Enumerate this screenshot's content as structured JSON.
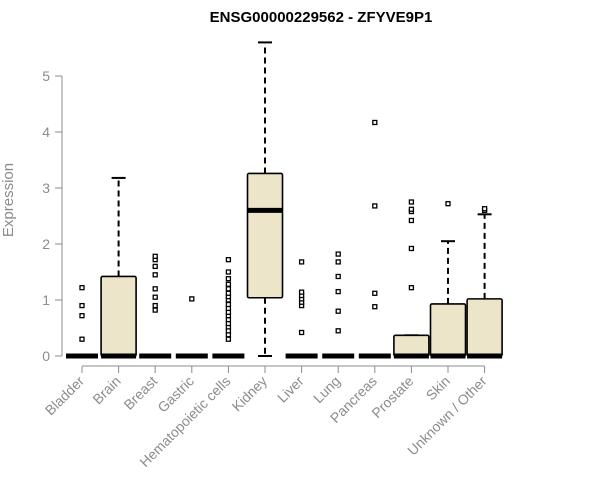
{
  "chart_data": {
    "type": "boxplot",
    "title": "ENSG00000229562 - ZFYVE9P1",
    "xlabel": "",
    "ylabel": "Expression",
    "ylim": [
      0,
      5.6
    ],
    "yticks": [
      0,
      1,
      2,
      3,
      4,
      5
    ],
    "colors": {
      "box_fill": "#ede5c9",
      "stroke": "#000000",
      "axis_text": "#8c8c8c"
    },
    "categories": [
      "Bladder",
      "Brain",
      "Breast",
      "Gastric",
      "Hematopoietic cells",
      "Kidney",
      "Liver",
      "Lung",
      "Pancreas",
      "Prostate",
      "Skin",
      "Unknown / Other"
    ],
    "boxes": [
      {
        "category": "Bladder",
        "min": 0,
        "q1": 0,
        "median": 0,
        "q3": 0,
        "max": 0,
        "outliers": [
          0.3,
          0.72,
          0.9,
          1.22
        ]
      },
      {
        "category": "Brain",
        "min": 0,
        "q1": 0,
        "median": 0,
        "q3": 1.42,
        "max": 3.18,
        "outliers": []
      },
      {
        "category": "Breast",
        "min": 0,
        "q1": 0,
        "median": 0,
        "q3": 0,
        "max": 0,
        "outliers": [
          0.82,
          0.9,
          1.05,
          1.2,
          1.45,
          1.6,
          1.72,
          1.78
        ]
      },
      {
        "category": "Gastric",
        "min": 0,
        "q1": 0,
        "median": 0,
        "q3": 0,
        "max": 0,
        "outliers": [
          1.02
        ]
      },
      {
        "category": "Hematopoietic cells",
        "min": 0,
        "q1": 0,
        "median": 0,
        "q3": 0,
        "max": 0,
        "outliers": [
          0.3,
          0.38,
          0.45,
          0.52,
          0.58,
          0.65,
          0.72,
          0.78,
          0.85,
          0.92,
          1.0,
          1.06,
          1.12,
          1.2,
          1.28,
          1.38,
          1.5,
          1.72
        ]
      },
      {
        "category": "Kidney",
        "min": 0,
        "q1": 1.04,
        "median": 2.6,
        "q3": 3.26,
        "max": 5.6,
        "outliers": []
      },
      {
        "category": "Liver",
        "min": 0,
        "q1": 0,
        "median": 0,
        "q3": 0,
        "max": 0,
        "outliers": [
          0.42,
          0.9,
          0.96,
          1.02,
          1.08,
          1.14,
          1.68
        ]
      },
      {
        "category": "Lung",
        "min": 0,
        "q1": 0,
        "median": 0,
        "q3": 0,
        "max": 0,
        "outliers": [
          0.45,
          0.8,
          1.15,
          1.42,
          1.68,
          1.82
        ]
      },
      {
        "category": "Pancreas",
        "min": 0,
        "q1": 0,
        "median": 0,
        "q3": 0,
        "max": 0,
        "outliers": [
          0.88,
          1.12,
          2.68,
          4.17
        ]
      },
      {
        "category": "Prostate",
        "min": 0,
        "q1": 0,
        "median": 0,
        "q3": 0.37,
        "max": 0.37,
        "outliers": [
          1.22,
          1.92,
          2.42,
          2.58,
          2.62,
          2.75
        ]
      },
      {
        "category": "Skin",
        "min": 0,
        "q1": 0,
        "median": 0,
        "q3": 0.93,
        "max": 2.05,
        "outliers": [
          2.72
        ]
      },
      {
        "category": "Unknown / Other",
        "min": 0,
        "q1": 0,
        "median": 0,
        "q3": 1.02,
        "max": 2.53,
        "outliers": [
          2.6,
          2.63
        ]
      }
    ]
  }
}
